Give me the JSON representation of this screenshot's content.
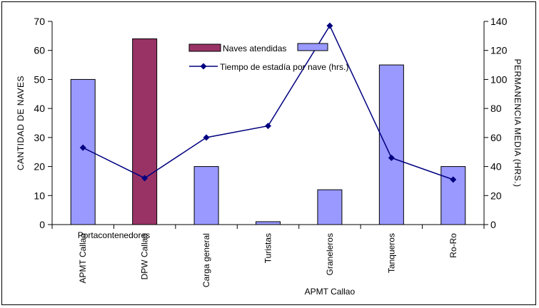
{
  "chart_data": {
    "type": "bar",
    "categories": [
      "APMT Callao",
      "DPW Callao",
      "Carga general",
      "Turistas",
      "Graneleros",
      "Tanqueros",
      "Ro-Ro"
    ],
    "group_labels": [
      "Portacontenedores",
      "APMT Callao"
    ],
    "series": [
      {
        "name": "Naves atendidas",
        "kind": "bar",
        "axis": "left",
        "values": [
          null,
          64,
          null,
          null,
          null,
          null,
          null
        ],
        "color": "#993366"
      },
      {
        "name": "",
        "kind": "bar",
        "axis": "left",
        "values": [
          50,
          null,
          20,
          1,
          12,
          55,
          20
        ],
        "color": "#9999ff"
      },
      {
        "name": "Tiempo de estadía por nave (hrs.)",
        "kind": "line",
        "axis": "right",
        "values": [
          53,
          32,
          60,
          68,
          137,
          46,
          31
        ],
        "color": "#000080"
      }
    ],
    "ylabel": "CANTIDAD DE NAVES",
    "y2label": "PERMANENCIA MEDIA (HRS.)",
    "ylim": [
      0,
      70
    ],
    "y2lim": [
      0,
      140
    ],
    "yticks": [
      "0",
      "10",
      "20",
      "30",
      "40",
      "50",
      "60",
      "70"
    ],
    "y2ticks": [
      "0",
      "20",
      "40",
      "60",
      "80",
      "100",
      "120",
      "140"
    ],
    "grid": false,
    "legend_position": "top-center"
  }
}
